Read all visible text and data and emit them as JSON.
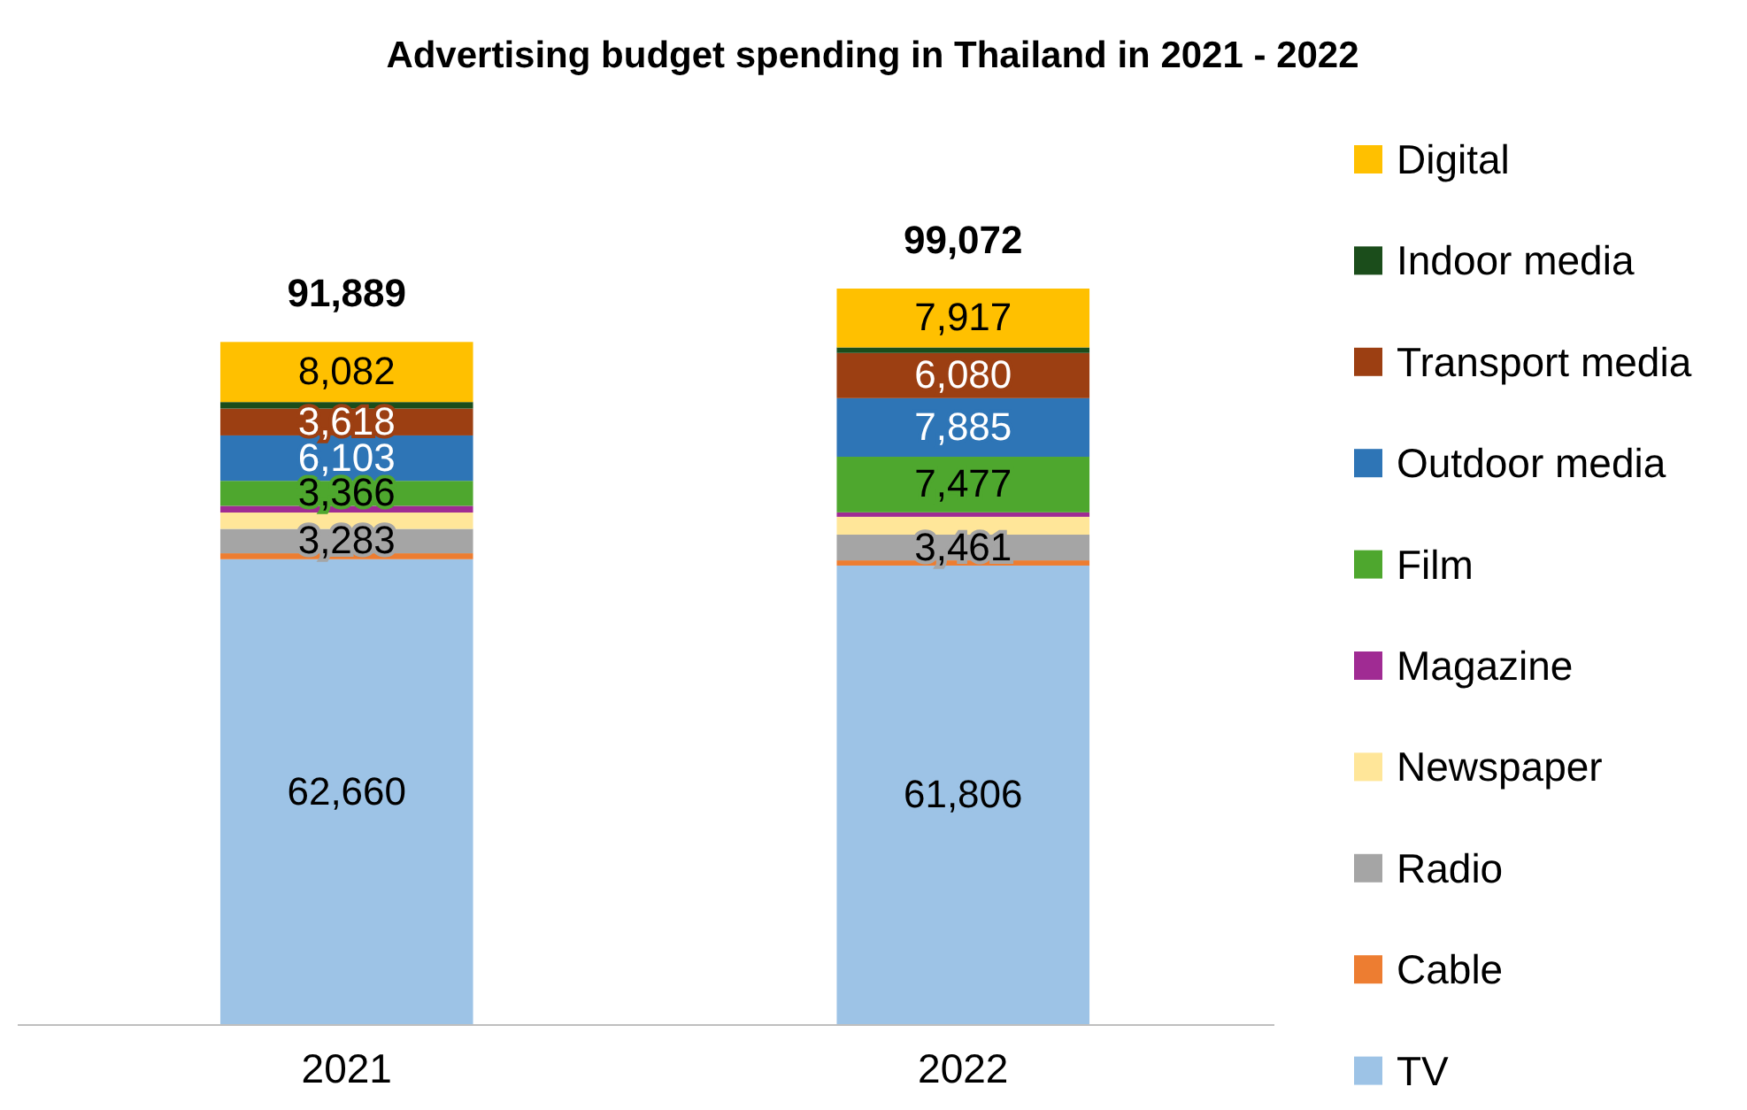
{
  "chart_data": {
    "type": "bar",
    "title": "Advertising budget spending in Thailand in 2021 - 2022",
    "categories": [
      "2021",
      "2022"
    ],
    "stacked": true,
    "data_labels": false,
    "legend": "right",
    "totals": [
      "91,889",
      "99,072"
    ],
    "series": [
      {
        "name": "TV",
        "color": "#9dc3e6",
        "values": [
          62660,
          61806
        ],
        "value_labels": [
          "62,660",
          "61,806"
        ]
      },
      {
        "name": "Cable",
        "color": "#ed7d31",
        "values": [
          800,
          700
        ],
        "value_labels": [
          null,
          null
        ]
      },
      {
        "name": "Radio",
        "color": "#a5a5a5",
        "values": [
          3283,
          3461
        ],
        "value_labels": [
          "3,283",
          "3,461"
        ]
      },
      {
        "name": "Newspaper",
        "color": "#ffe699",
        "values": [
          2200,
          2400
        ],
        "value_labels": [
          null,
          null
        ]
      },
      {
        "name": "Magazine",
        "color": "#a02b93",
        "values": [
          900,
          600
        ],
        "value_labels": [
          null,
          null
        ]
      },
      {
        "name": "Film",
        "color": "#4ea72e",
        "values": [
          3366,
          7477
        ],
        "value_labels": [
          "3,366",
          "7,477"
        ]
      },
      {
        "name": "Outdoor media",
        "color": "#2e75b6",
        "values": [
          6103,
          7885
        ],
        "value_labels": [
          "6,103",
          "7,885"
        ]
      },
      {
        "name": "Transport media",
        "color": "#9c3f12",
        "values": [
          3618,
          6080
        ],
        "value_labels": [
          "3,618",
          "6,080"
        ]
      },
      {
        "name": "Indoor media",
        "color": "#1b4d1b",
        "values": [
          877,
          746
        ],
        "value_labels": [
          null,
          null
        ]
      },
      {
        "name": "Digital",
        "color": "#ffc000",
        "values": [
          8082,
          7917
        ],
        "value_labels": [
          "8,082",
          "7,917"
        ]
      }
    ]
  }
}
